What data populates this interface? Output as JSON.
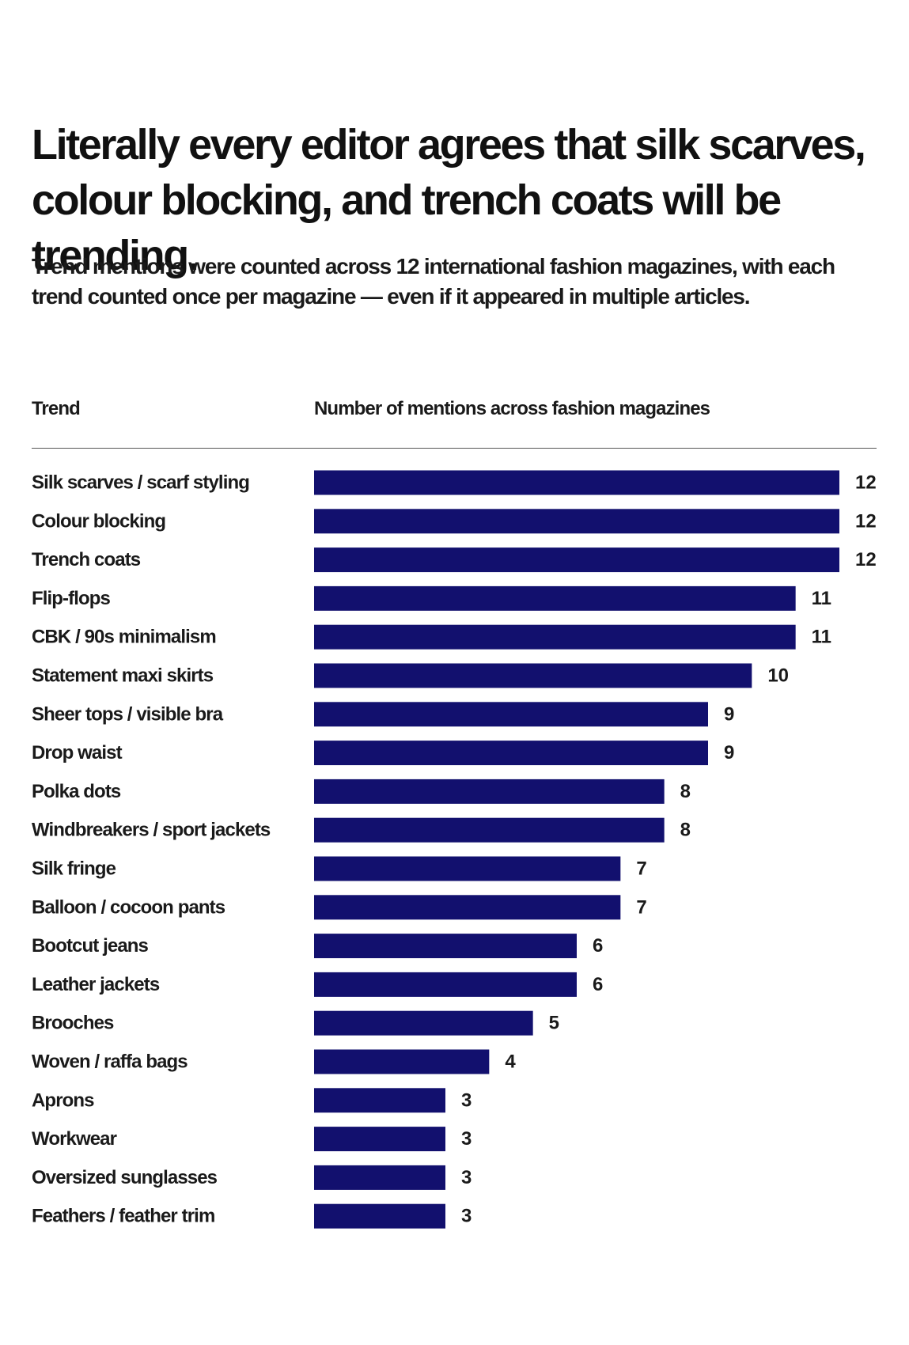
{
  "chart_data": {
    "type": "bar",
    "orientation": "horizontal",
    "title": "Literally every editor agrees that silk scarves, colour blocking, and trench coats will be trending.",
    "subtitle": "Trend mentions were counted across 12 international fashion magazines, with each trend counted once per magazine — even if it appeared in multiple articles.",
    "category_header": "Trend",
    "value_header": "Number of mentions across fashion magazines",
    "bar_color": "#12106e",
    "xlim": [
      0,
      12
    ],
    "data_labels": true,
    "categories": [
      "Silk scarves / scarf styling",
      "Colour blocking",
      "Trench coats",
      "Flip-flops",
      "CBK / 90s minimalism",
      "Statement maxi skirts",
      "Sheer tops / visible bra",
      "Drop waist",
      "Polka dots",
      "Windbreakers / sport jackets",
      "Silk fringe",
      "Balloon / cocoon pants",
      "Bootcut jeans",
      "Leather jackets",
      "Brooches",
      "Woven / raffa bags",
      "Aprons",
      "Workwear",
      "Oversized sunglasses",
      "Feathers / feather trim"
    ],
    "values": [
      12,
      12,
      12,
      11,
      11,
      10,
      9,
      9,
      8,
      8,
      7,
      7,
      6,
      6,
      5,
      4,
      3,
      3,
      3,
      3
    ]
  }
}
